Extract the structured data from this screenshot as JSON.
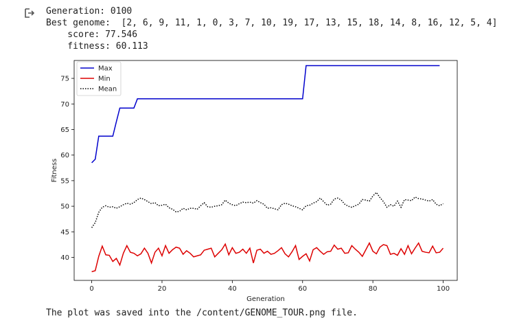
{
  "output": {
    "generation_line": "Generation: 0100",
    "genome_line": "Best genome:  [2, 6, 9, 11, 1, 0, 3, 7, 10, 19, 17, 13, 15, 18, 14, 8, 16, 12, 5, 4]",
    "score_line": "    score: 77.546",
    "fitness_line": "    fitness: 60.113",
    "saved_line": "The plot was saved into the /content/GENOME_TOUR.png file.",
    "icon": "output-arrow-icon"
  },
  "chart_data": {
    "type": "line",
    "xlabel": "Generation",
    "ylabel": "Fitness",
    "xlim": [
      -5,
      104
    ],
    "ylim": [
      35.5,
      78.5
    ],
    "xticks": [
      0,
      20,
      40,
      60,
      80,
      100
    ],
    "yticks": [
      40,
      45,
      50,
      55,
      60,
      65,
      70,
      75
    ],
    "legend_position": "top-left",
    "series": [
      {
        "name": "Max",
        "color": "#0000cc",
        "style": "solid",
        "values": [
          58.5,
          59.2,
          63.7,
          63.7,
          63.7,
          63.7,
          63.7,
          66.5,
          69.2,
          69.2,
          69.2,
          69.2,
          69.2,
          71.0,
          71.0,
          71.0,
          71.0,
          71.0,
          71.0,
          71.0,
          71.0,
          71.0,
          71.0,
          71.0,
          71.0,
          71.0,
          71.0,
          71.0,
          71.0,
          71.0,
          71.0,
          71.0,
          71.0,
          71.0,
          71.0,
          71.0,
          71.0,
          71.0,
          71.0,
          71.0,
          71.0,
          71.0,
          71.0,
          71.0,
          71.0,
          71.0,
          71.0,
          71.0,
          71.0,
          71.0,
          71.0,
          71.0,
          71.0,
          71.0,
          71.0,
          71.0,
          71.0,
          71.0,
          71.0,
          71.0,
          71.0,
          77.5,
          77.5,
          77.5,
          77.5,
          77.5,
          77.5,
          77.5,
          77.5,
          77.5,
          77.5,
          77.5,
          77.5,
          77.5,
          77.5,
          77.5,
          77.5,
          77.5,
          77.5,
          77.5,
          77.5,
          77.5,
          77.5,
          77.5,
          77.5,
          77.5,
          77.5,
          77.5,
          77.5,
          77.5,
          77.5,
          77.5,
          77.5,
          77.5,
          77.5,
          77.5,
          77.5,
          77.5,
          77.5,
          77.5
        ]
      },
      {
        "name": "Min",
        "color": "#dd0000",
        "style": "solid",
        "values": [
          37.2,
          37.4,
          40.2,
          42.2,
          40.5,
          40.4,
          39.2,
          39.8,
          38.5,
          40.8,
          42.3,
          41.0,
          40.8,
          40.3,
          40.7,
          41.8,
          40.8,
          38.9,
          41.0,
          41.8,
          40.3,
          42.3,
          40.8,
          41.5,
          42.0,
          41.8,
          40.6,
          41.3,
          40.8,
          40.1,
          40.3,
          40.5,
          41.4,
          41.6,
          41.8,
          40.1,
          40.8,
          41.5,
          42.6,
          40.5,
          41.9,
          40.8,
          41.0,
          41.6,
          40.8,
          41.8,
          38.9,
          41.4,
          41.6,
          40.8,
          41.2,
          40.6,
          40.8,
          41.3,
          41.9,
          40.7,
          40.1,
          41.1,
          42.3,
          39.6,
          40.2,
          40.7,
          39.3,
          41.5,
          41.9,
          41.2,
          40.6,
          41.1,
          41.2,
          42.4,
          41.6,
          41.8,
          40.8,
          40.9,
          42.3,
          41.6,
          41.0,
          40.2,
          41.5,
          42.8,
          41.2,
          40.7,
          42.0,
          42.5,
          42.3,
          40.6,
          40.8,
          40.4,
          41.7,
          40.6,
          42.3,
          40.7,
          41.8,
          42.8,
          41.2,
          41.0,
          40.9,
          42.2,
          40.9,
          41.0,
          41.8
        ]
      },
      {
        "name": "Mean",
        "color": "#000000",
        "style": "dotted",
        "values": [
          45.8,
          46.8,
          48.8,
          49.8,
          50.1,
          49.8,
          49.9,
          49.6,
          49.9,
          50.3,
          50.6,
          50.4,
          50.7,
          51.3,
          51.6,
          51.3,
          50.9,
          50.5,
          50.7,
          50.1,
          50.2,
          50.4,
          49.7,
          49.4,
          48.9,
          49.0,
          49.6,
          49.3,
          49.6,
          49.6,
          49.4,
          50.1,
          50.7,
          49.9,
          49.8,
          50.0,
          50.1,
          50.3,
          51.2,
          50.6,
          50.3,
          50.1,
          50.5,
          50.8,
          50.7,
          50.8,
          50.6,
          51.1,
          50.7,
          50.4,
          49.6,
          49.7,
          49.5,
          49.3,
          50.3,
          50.6,
          50.4,
          50.1,
          49.9,
          49.6,
          49.3,
          50.1,
          50.2,
          50.6,
          50.9,
          51.6,
          50.9,
          50.2,
          50.4,
          51.4,
          51.6,
          51.2,
          50.4,
          50.0,
          49.8,
          50.1,
          50.4,
          51.3,
          51.2,
          51.0,
          52.0,
          52.7,
          51.7,
          50.9,
          49.8,
          50.3,
          50.0,
          51.0,
          49.8,
          51.3,
          51.2,
          51.1,
          51.8,
          51.5,
          51.4,
          51.2,
          51.0,
          51.3,
          50.4,
          50.1,
          50.5
        ]
      }
    ]
  }
}
